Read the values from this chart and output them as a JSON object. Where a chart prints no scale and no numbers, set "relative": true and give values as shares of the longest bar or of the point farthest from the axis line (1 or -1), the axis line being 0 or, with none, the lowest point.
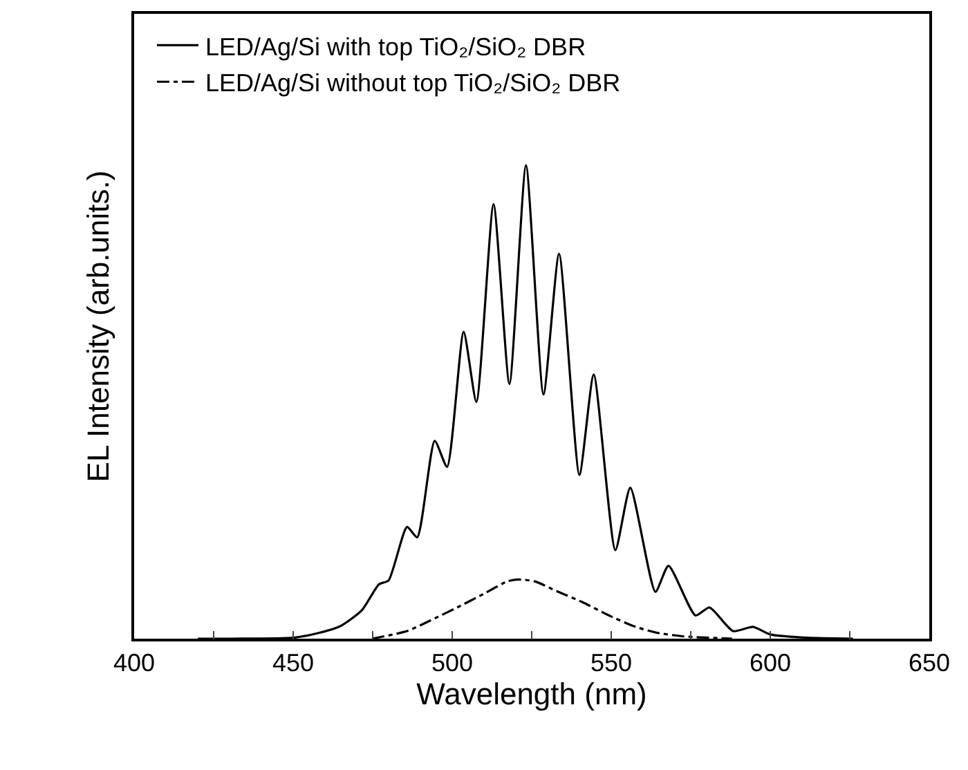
{
  "chart_data": {
    "type": "line",
    "relative": true,
    "xlabel": "Wavelength (nm)",
    "ylabel": "EL Intensity (arb.units.)",
    "xlim": [
      400,
      650
    ],
    "xticks": [
      400,
      {
        "value": 425,
        "label": null
      },
      450,
      {
        "value": 475,
        "label": null
      },
      500,
      {
        "value": 525,
        "label": null
      },
      550,
      {
        "value": 575,
        "label": null
      },
      600,
      {
        "value": 625,
        "label": null
      },
      650
    ],
    "legend": "top left",
    "grid": false,
    "marker": "none",
    "series": [
      {
        "name": "LED/Ag/Si with top TiO₂/SiO₂ DBR",
        "color": "#000000",
        "line_style": "solid",
        "x": [
          420,
          430.6,
          450,
          458,
          465,
          471.6,
          477,
          480,
          485.8,
          489,
          494.5,
          498.4,
          503.6,
          507.6,
          513,
          518,
          523.2,
          528.7,
          533.6,
          540,
          544.5,
          551.3,
          556,
          563.9,
          568,
          576.5,
          580.9,
          588.3,
          594.6,
          600,
          611.8,
          626
        ],
        "values": [
          0,
          0,
          0.002,
          0.012,
          0.027,
          0.06,
          0.115,
          0.123,
          0.236,
          0.214,
          0.418,
          0.363,
          0.648,
          0.5,
          0.918,
          0.538,
          1.0,
          0.516,
          0.813,
          0.346,
          0.558,
          0.187,
          0.319,
          0.099,
          0.154,
          0.049,
          0.066,
          0.016,
          0.025,
          0.009,
          0.002,
          0
        ]
      },
      {
        "name": "LED/Ag/Si without top TiO₂/SiO₂ DBR",
        "color": "#000000",
        "line_style": "dashed",
        "x": [
          474.8,
          485.8,
          493,
          501.6,
          510,
          517.3,
          521,
          526,
          533,
          541,
          549,
          556.8,
          564,
          572.5,
          588
        ],
        "values": [
          0,
          0.016,
          0.038,
          0.066,
          0.095,
          0.121,
          0.125,
          0.121,
          0.1,
          0.077,
          0.05,
          0.027,
          0.013,
          0.005,
          0
        ]
      }
    ]
  }
}
